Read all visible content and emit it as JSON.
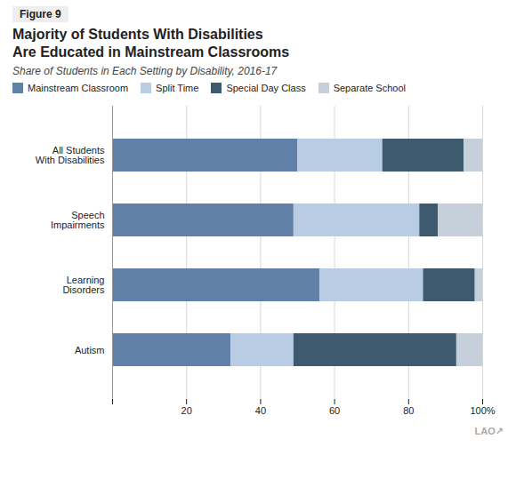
{
  "chart_data": {
    "type": "bar",
    "orientation": "horizontal",
    "stacked": true,
    "title": "Majority of Students With Disabilities\nAre Educated in Mainstream Classrooms",
    "subtitle": "Share of Students in Each Setting by Disability, 2016-17",
    "annotations": [
      "Figure 9",
      "LAO↗"
    ],
    "categories": [
      "All Students\nWith Disabilities",
      "Speech\nImpairments",
      "Learning\nDisorders",
      "Autism"
    ],
    "series": [
      {
        "name": "Mainstream Classroom",
        "color": "#6080a8",
        "values": [
          50,
          49,
          56,
          32
        ]
      },
      {
        "name": "Split Time",
        "color": "#b8cce4",
        "values": [
          23,
          34,
          28,
          17
        ]
      },
      {
        "name": "Special Day Class",
        "color": "#3d5a6e",
        "values": [
          22,
          5,
          14,
          44
        ]
      },
      {
        "name": "Separate School",
        "color": "#c5d0db",
        "values": [
          5,
          12,
          2,
          7
        ]
      }
    ],
    "xlim": [
      0,
      100
    ],
    "xticks": [
      {
        "value": 0,
        "label": ""
      },
      20,
      40,
      60,
      80,
      {
        "value": 100,
        "label": "100%"
      }
    ],
    "grid": true,
    "legend": "upper left"
  }
}
